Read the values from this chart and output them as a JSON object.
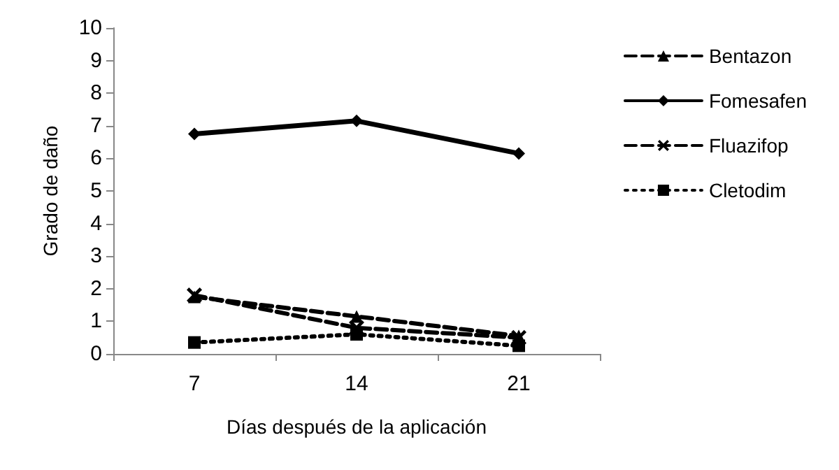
{
  "chart_data": {
    "type": "line",
    "xlabel": "Días después de la aplicación",
    "ylabel": "Grado de daño",
    "categories": [
      "7",
      "14",
      "21"
    ],
    "ylim": [
      0,
      10
    ],
    "yticks": [
      0,
      1,
      2,
      3,
      4,
      5,
      6,
      7,
      8,
      9,
      10
    ],
    "grid": false,
    "legend": "right",
    "series": [
      {
        "name": "Bentazon",
        "color": "#000000",
        "values": [
          1.75,
          1.15,
          0.55
        ],
        "marker": "triangle",
        "line_style": "dashed"
      },
      {
        "name": "Fomesafen",
        "color": "#000000",
        "values": [
          6.75,
          7.15,
          6.15
        ],
        "marker": "diamond",
        "line_style": "solid"
      },
      {
        "name": "Fluazifop",
        "color": "#000000",
        "values": [
          1.8,
          0.8,
          0.5
        ],
        "marker": "cross",
        "line_style": "dashed"
      },
      {
        "name": "Cletodim",
        "color": "#000000",
        "values": [
          0.35,
          0.6,
          0.25
        ],
        "marker": "square",
        "line_style": "dotted"
      }
    ]
  }
}
